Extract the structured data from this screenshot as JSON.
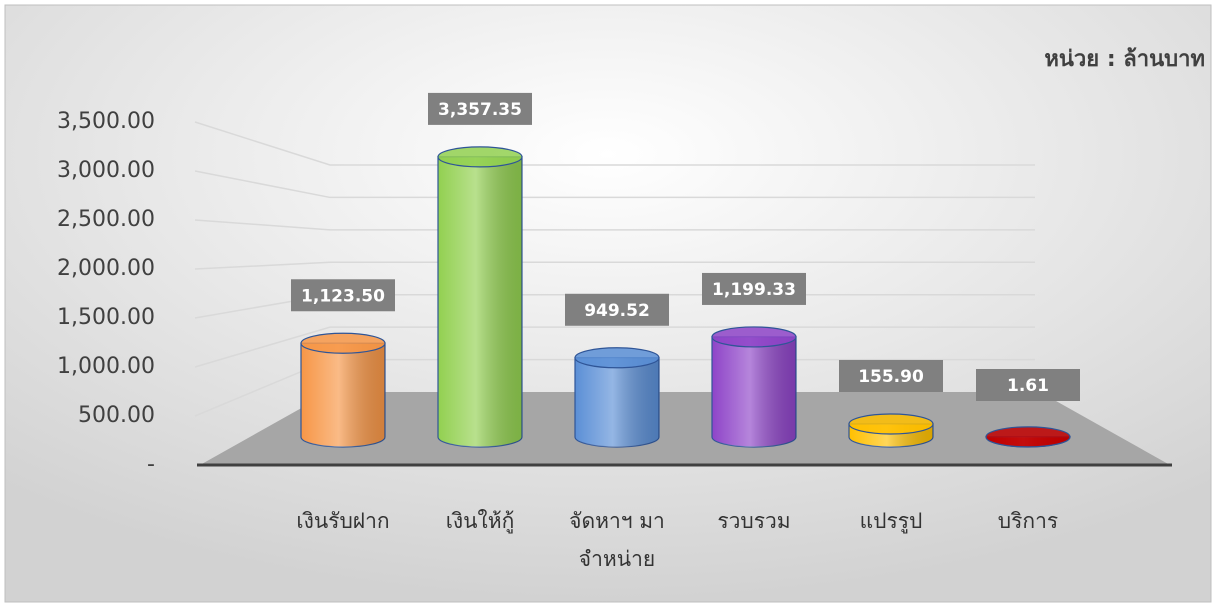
{
  "chart_data": {
    "type": "bar",
    "unit_label": "หน่วย : ล้านบาท",
    "categories": [
      "เงินรับฝาก",
      "เงินให้กู้",
      "จัดหาฯ มา จำหน่าย",
      "รวบรวม",
      "แปรรูป",
      "บริการ"
    ],
    "values": [
      1123.5,
      3357.35,
      949.52,
      1199.33,
      155.9,
      1.61
    ],
    "value_labels": [
      "1,123.50",
      "3,357.35",
      "949.52",
      "1,199.33",
      "155.90",
      "1.61"
    ],
    "colors": [
      "#f79646",
      "#92d050",
      "#5b8fd6",
      "#8e44c8",
      "#ffc000",
      "#c00000"
    ],
    "ylim": [
      0,
      3500
    ],
    "yticks": [
      {
        "value": 0,
        "label": "-"
      },
      {
        "value": 500,
        "label": "500.00"
      },
      {
        "value": 1000,
        "label": "1,000.00"
      },
      {
        "value": 1500,
        "label": "1,500.00"
      },
      {
        "value": 2000,
        "label": "2,000.00"
      },
      {
        "value": 2500,
        "label": "2,500.00"
      },
      {
        "value": 3000,
        "label": "3,000.00"
      },
      {
        "value": 3500,
        "label": "3,500.00"
      }
    ],
    "grid": true
  }
}
